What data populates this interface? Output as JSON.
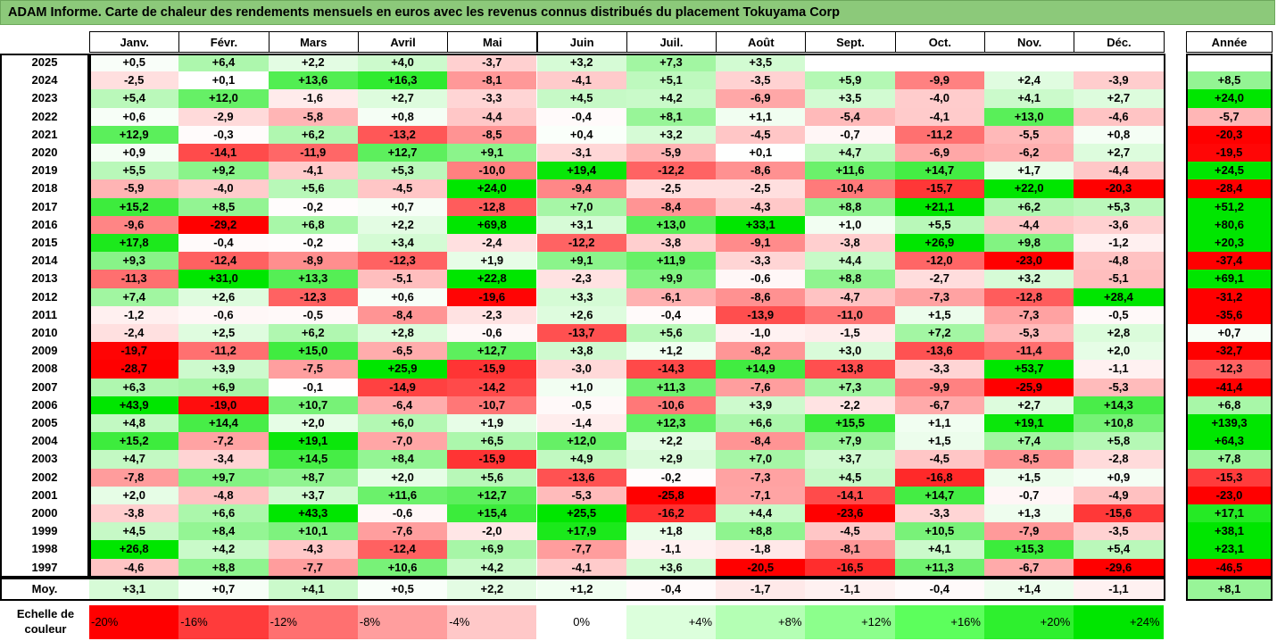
{
  "title": "ADAM Informe. Carte de chaleur des rendements mensuels en euros avec les revenus connus distribués du placement Tokuyama Corp",
  "chart_data": {
    "type": "heatmap",
    "title": "ADAM Informe. Carte de chaleur des rendements mensuels en euros avec les revenus connus distribués du placement Tokuyama Corp",
    "columns": [
      "Janv.",
      "Févr.",
      "Mars",
      "Avril",
      "Mai",
      "Juin",
      "Juil.",
      "Août",
      "Sept.",
      "Oct.",
      "Nov.",
      "Déc."
    ],
    "year_column": "Année",
    "rows": [
      {
        "year": "2025",
        "values": [
          "+0,5",
          "+6,4",
          "+2,2",
          "+4,0",
          "-3,7",
          "+3,2",
          "+7,3",
          "+3,5",
          "",
          "",
          "",
          ""
        ],
        "annual": ""
      },
      {
        "year": "2024",
        "values": [
          "-2,5",
          "+0,1",
          "+13,6",
          "+16,3",
          "-8,1",
          "-4,1",
          "+5,1",
          "-3,5",
          "+5,9",
          "-9,9",
          "+2,4",
          "-3,9"
        ],
        "annual": "+8,5"
      },
      {
        "year": "2023",
        "values": [
          "+5,4",
          "+12,0",
          "-1,6",
          "+2,7",
          "-3,3",
          "+4,5",
          "+4,2",
          "-6,9",
          "+3,5",
          "-4,0",
          "+4,1",
          "+2,7"
        ],
        "annual": "+24,0"
      },
      {
        "year": "2022",
        "values": [
          "+0,6",
          "-2,9",
          "-5,8",
          "+0,8",
          "-4,4",
          "-0,4",
          "+8,1",
          "+1,1",
          "-5,4",
          "-4,1",
          "+13,0",
          "-4,6"
        ],
        "annual": "-5,7"
      },
      {
        "year": "2021",
        "values": [
          "+12,9",
          "-0,3",
          "+6,2",
          "-13,2",
          "-8,5",
          "+0,4",
          "+3,2",
          "-4,5",
          "-0,7",
          "-11,2",
          "-5,5",
          "+0,8"
        ],
        "annual": "-20,3"
      },
      {
        "year": "2020",
        "values": [
          "+0,9",
          "-14,1",
          "-11,9",
          "+12,7",
          "+9,1",
          "-3,1",
          "-5,9",
          "+0,1",
          "+4,7",
          "-6,9",
          "-6,2",
          "+2,7"
        ],
        "annual": "-19,5"
      },
      {
        "year": "2019",
        "values": [
          "+5,5",
          "+9,2",
          "-4,1",
          "+5,3",
          "-10,0",
          "+19,4",
          "-12,2",
          "-8,6",
          "+11,6",
          "+14,7",
          "+1,7",
          "-4,4"
        ],
        "annual": "+24,5"
      },
      {
        "year": "2018",
        "values": [
          "-5,9",
          "-4,0",
          "+5,6",
          "-4,5",
          "+24,0",
          "-9,4",
          "-2,5",
          "-2,5",
          "-10,4",
          "-15,7",
          "+22,0",
          "-20,3"
        ],
        "annual": "-28,4"
      },
      {
        "year": "2017",
        "values": [
          "+15,2",
          "+8,5",
          "-0,2",
          "+0,7",
          "-12,8",
          "+7,0",
          "-8,4",
          "-4,3",
          "+8,8",
          "+21,1",
          "+6,2",
          "+5,3"
        ],
        "annual": "+51,2"
      },
      {
        "year": "2016",
        "values": [
          "-9,6",
          "-29,2",
          "+6,8",
          "+2,2",
          "+69,8",
          "+3,1",
          "+13,0",
          "+33,1",
          "+1,0",
          "+5,5",
          "-4,4",
          "-3,6"
        ],
        "annual": "+80,6"
      },
      {
        "year": "2015",
        "values": [
          "+17,8",
          "-0,4",
          "-0,2",
          "+3,4",
          "-2,4",
          "-12,2",
          "-3,8",
          "-9,1",
          "-3,8",
          "+26,9",
          "+9,8",
          "-1,2"
        ],
        "annual": "+20,3"
      },
      {
        "year": "2014",
        "values": [
          "+9,3",
          "-12,4",
          "-8,9",
          "-12,3",
          "+1,9",
          "+9,1",
          "+11,9",
          "-3,3",
          "+4,4",
          "-12,0",
          "-23,0",
          "-4,8"
        ],
        "annual": "-37,4"
      },
      {
        "year": "2013",
        "values": [
          "-11,3",
          "+31,0",
          "+13,3",
          "-5,1",
          "+22,8",
          "-2,3",
          "+9,9",
          "-0,6",
          "+8,8",
          "-2,7",
          "+3,2",
          "-5,1"
        ],
        "annual": "+69,1"
      },
      {
        "year": "2012",
        "values": [
          "+7,4",
          "+2,6",
          "-12,3",
          "+0,6",
          "-19,6",
          "+3,3",
          "-6,1",
          "-8,6",
          "-4,7",
          "-7,3",
          "-12,8",
          "+28,4"
        ],
        "annual": "-31,2"
      },
      {
        "year": "2011",
        "values": [
          "-1,2",
          "-0,6",
          "-0,5",
          "-8,4",
          "-2,3",
          "+2,6",
          "-0,4",
          "-13,9",
          "-11,0",
          "+1,5",
          "-7,3",
          "-0,5"
        ],
        "annual": "-35,6"
      },
      {
        "year": "2010",
        "values": [
          "-2,4",
          "+2,5",
          "+6,2",
          "+2,8",
          "-0,6",
          "-13,7",
          "+5,6",
          "-1,0",
          "-1,5",
          "+7,2",
          "-5,3",
          "+2,8"
        ],
        "annual": "+0,7"
      },
      {
        "year": "2009",
        "values": [
          "-19,7",
          "-11,2",
          "+15,0",
          "-6,5",
          "+12,7",
          "+3,8",
          "+1,2",
          "-8,2",
          "+3,0",
          "-13,6",
          "-11,4",
          "+2,0"
        ],
        "annual": "-32,7"
      },
      {
        "year": "2008",
        "values": [
          "-28,7",
          "+3,9",
          "-7,5",
          "+25,9",
          "-15,9",
          "-3,0",
          "-14,3",
          "+14,9",
          "-13,8",
          "-3,3",
          "+53,7",
          "-1,1"
        ],
        "annual": "-12,3"
      },
      {
        "year": "2007",
        "values": [
          "+6,3",
          "+6,9",
          "-0,1",
          "-14,9",
          "-14,2",
          "+1,0",
          "+11,3",
          "-7,6",
          "+7,3",
          "-9,9",
          "-25,9",
          "-5,3"
        ],
        "annual": "-41,4"
      },
      {
        "year": "2006",
        "values": [
          "+43,9",
          "-19,0",
          "+10,7",
          "-6,4",
          "-10,7",
          "-0,5",
          "-10,6",
          "+3,9",
          "-2,2",
          "-6,7",
          "+2,7",
          "+14,3"
        ],
        "annual": "+6,8"
      },
      {
        "year": "2005",
        "values": [
          "+4,8",
          "+14,4",
          "+2,0",
          "+6,0",
          "+1,9",
          "-1,4",
          "+12,3",
          "+6,6",
          "+15,5",
          "+1,1",
          "+19,1",
          "+10,8"
        ],
        "annual": "+139,3"
      },
      {
        "year": "2004",
        "values": [
          "+15,2",
          "-7,2",
          "+19,1",
          "-7,0",
          "+6,5",
          "+12,0",
          "+2,2",
          "-8,4",
          "+7,9",
          "+1,5",
          "+7,4",
          "+5,8"
        ],
        "annual": "+64,3"
      },
      {
        "year": "2003",
        "values": [
          "+4,7",
          "-3,4",
          "+14,5",
          "+8,4",
          "-15,9",
          "+4,9",
          "+2,9",
          "+7,0",
          "+3,7",
          "-4,5",
          "-8,5",
          "-2,8"
        ],
        "annual": "+7,8"
      },
      {
        "year": "2002",
        "values": [
          "-7,8",
          "+9,7",
          "+8,7",
          "+2,0",
          "+5,6",
          "-13,6",
          "-0,2",
          "-7,3",
          "+4,5",
          "-16,8",
          "+1,5",
          "+0,9"
        ],
        "annual": "-15,3"
      },
      {
        "year": "2001",
        "values": [
          "+2,0",
          "-4,8",
          "+3,7",
          "+11,6",
          "+12,7",
          "-5,3",
          "-25,8",
          "-7,1",
          "-14,1",
          "+14,7",
          "-0,7",
          "-4,9"
        ],
        "annual": "-23,0"
      },
      {
        "year": "2000",
        "values": [
          "-3,8",
          "+6,6",
          "+43,3",
          "-0,6",
          "+15,4",
          "+25,5",
          "-16,2",
          "+4,4",
          "-23,6",
          "-3,3",
          "+1,3",
          "-15,6"
        ],
        "annual": "+17,1"
      },
      {
        "year": "1999",
        "values": [
          "+4,5",
          "+8,4",
          "+10,1",
          "-7,6",
          "-2,0",
          "+17,9",
          "+1,8",
          "+8,8",
          "-4,5",
          "+10,5",
          "-7,9",
          "-3,5"
        ],
        "annual": "+38,1"
      },
      {
        "year": "1998",
        "values": [
          "+26,8",
          "+4,2",
          "-4,3",
          "-12,4",
          "+6,9",
          "-7,7",
          "-1,1",
          "-1,8",
          "-8,1",
          "+4,1",
          "+15,3",
          "+5,4"
        ],
        "annual": "+23,1"
      },
      {
        "year": "1997",
        "values": [
          "-4,6",
          "+8,8",
          "-7,7",
          "+10,6",
          "+4,2",
          "-4,1",
          "+3,6",
          "-20,5",
          "-16,5",
          "+11,3",
          "-6,7",
          "-29,6"
        ],
        "annual": "-46,5"
      }
    ],
    "average": {
      "label": "Moy.",
      "values": [
        "+3,1",
        "+0,7",
        "+4,1",
        "+0,5",
        "+2,2",
        "+1,2",
        "-0,4",
        "-1,7",
        "-1,1",
        "-0,4",
        "+1,4",
        "-1,1"
      ],
      "annual": "+8,1"
    },
    "color_scale": {
      "label": "Echelle de couleur",
      "stops": [
        "-20%",
        "-16%",
        "-12%",
        "-8%",
        "-4%",
        "0%",
        "+4%",
        "+8%",
        "+12%",
        "+16%",
        "+20%",
        "+24%"
      ],
      "colors": [
        "#ff0000",
        "#ff3b3b",
        "#ff7070",
        "#ff9e9e",
        "#ffc8c8",
        "#ffffff",
        "#dcffdc",
        "#b4ffb4",
        "#8cff8c",
        "#5cff5c",
        "#2ef02e",
        "#00e600"
      ]
    }
  }
}
